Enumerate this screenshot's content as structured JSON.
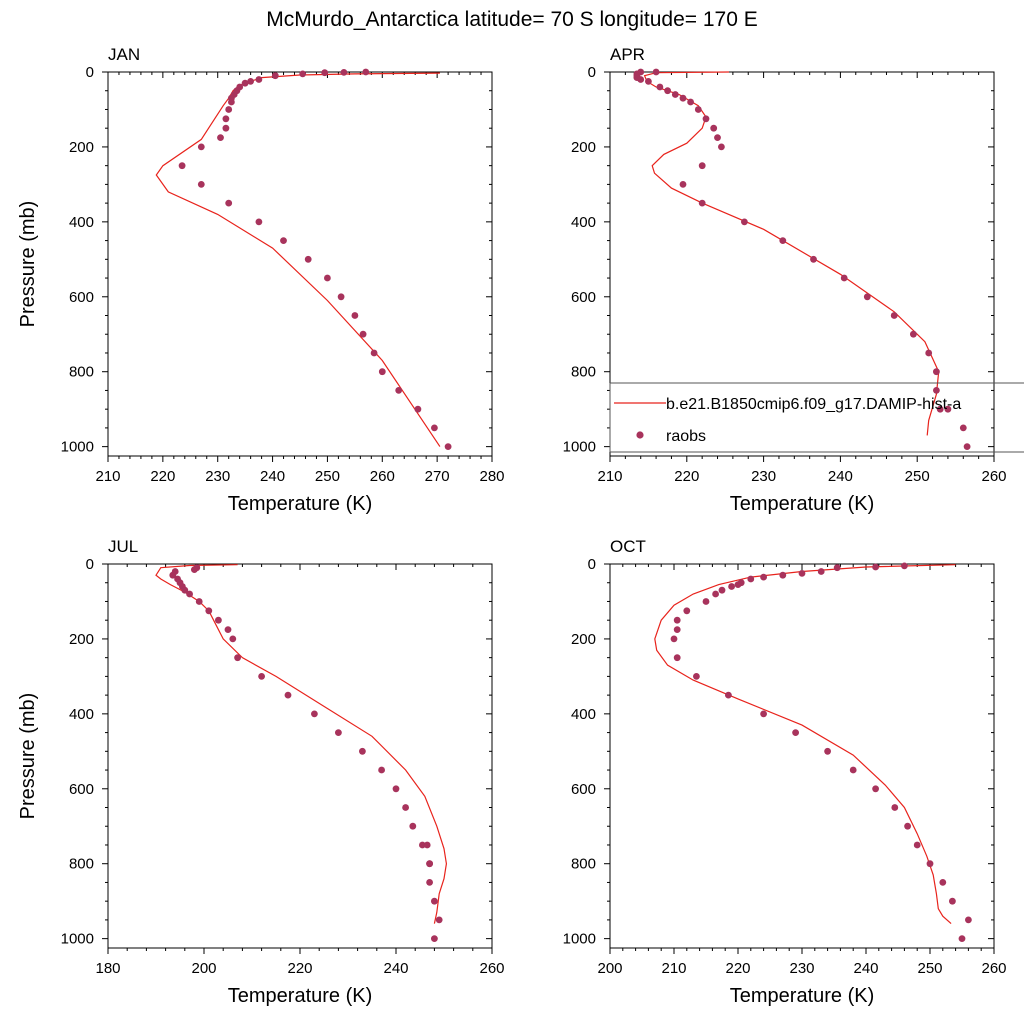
{
  "title": "McMurdo_Antarctica  latitude= 70 S longitude= 170 E",
  "colors": {
    "model": "#e8231c",
    "obs": "#a8335c"
  },
  "legend": {
    "panel": 1,
    "entries": [
      {
        "label": "b.e21.B1850cmip6.f09_g17.DAMIP-hist-a",
        "style": "line"
      },
      {
        "label": "raobs",
        "style": "marker"
      }
    ]
  },
  "chart_data": [
    {
      "type": "line",
      "title": "JAN",
      "xlabel": "Temperature (K)",
      "ylabel": "Pressure (mb)",
      "xlim": [
        210,
        280
      ],
      "ylim": [
        1025,
        0
      ],
      "xticks": [
        210,
        220,
        230,
        240,
        250,
        260,
        270,
        280
      ],
      "yticks": [
        0,
        200,
        400,
        600,
        800,
        1000
      ],
      "series": [
        {
          "name": "b.e21.B1850cmip6.f09_g17.DAMIP-hist-a",
          "style": "line",
          "x": [
            270.5,
            255,
            245,
            238,
            234,
            232.8,
            232,
            231,
            227,
            220,
            218.8,
            221,
            230,
            240,
            250,
            260,
            270.5
          ],
          "y": [
            3,
            5,
            8,
            15,
            35,
            50,
            70,
            90,
            180,
            250,
            275,
            320,
            380,
            470,
            610,
            770,
            1000
          ]
        },
        {
          "name": "raobs",
          "style": "marker",
          "x": [
            257,
            253,
            249.5,
            245.5,
            240.5,
            237.5,
            236,
            235,
            234,
            233.5,
            233,
            232.5,
            232.5,
            232,
            231.5,
            231.5,
            230.5,
            227,
            223.5,
            227,
            232,
            237.5,
            242,
            246.5,
            250,
            252.5,
            255,
            256.5,
            258.5,
            260,
            263,
            266.5,
            269.5,
            272
          ],
          "y": [
            0,
            1,
            2,
            5,
            10,
            20,
            25,
            30,
            40,
            50,
            60,
            70,
            80,
            100,
            125,
            150,
            175,
            200,
            250,
            300,
            350,
            400,
            450,
            500,
            550,
            600,
            650,
            700,
            750,
            800,
            850,
            900,
            950,
            1000
          ]
        }
      ]
    },
    {
      "type": "line",
      "title": "APR",
      "xlabel": "Temperature (K)",
      "ylabel": "",
      "xlim": [
        210,
        260
      ],
      "ylim": [
        1025,
        0
      ],
      "xticks": [
        210,
        220,
        230,
        240,
        250,
        260
      ],
      "yticks": [
        0,
        200,
        400,
        600,
        800,
        1000
      ],
      "series": [
        {
          "name": "b.e21.B1850cmip6.f09_g17.DAMIP-hist-a",
          "style": "line",
          "x": [
            225.5,
            216,
            214.5,
            214.8,
            216,
            219,
            221.5,
            222.5,
            222,
            221,
            220,
            217,
            215.5,
            215.8,
            218,
            222,
            230,
            240,
            247,
            251,
            252.8,
            252.5,
            251.5,
            251.3
          ],
          "y": [
            0,
            2,
            10,
            25,
            40,
            60,
            90,
            120,
            150,
            170,
            190,
            220,
            250,
            270,
            310,
            350,
            420,
            540,
            640,
            720,
            800,
            860,
            930,
            970
          ]
        },
        {
          "name": "raobs",
          "style": "marker",
          "x": [
            216,
            214,
            213.5,
            213.5,
            213.5,
            214,
            215,
            216.5,
            217.5,
            218.5,
            219.5,
            220.5,
            221.5,
            222.5,
            223.5,
            224,
            224.5,
            222,
            219.5,
            222,
            227.5,
            232.5,
            236.5,
            240.5,
            243.5,
            247,
            249.5,
            251.5,
            252.5,
            252.5,
            253,
            254,
            256,
            256.5
          ],
          "y": [
            0,
            0,
            5,
            10,
            15,
            20,
            25,
            40,
            50,
            60,
            70,
            80,
            100,
            125,
            150,
            175,
            200,
            250,
            300,
            350,
            400,
            450,
            500,
            550,
            600,
            650,
            700,
            750,
            800,
            850,
            900,
            900,
            950,
            1000
          ]
        }
      ]
    },
    {
      "type": "line",
      "title": "JUL",
      "xlabel": "Temperature (K)",
      "ylabel": "Pressure (mb)",
      "xlim": [
        180,
        260
      ],
      "ylim": [
        1025,
        0
      ],
      "xticks": [
        180,
        200,
        220,
        240,
        260
      ],
      "yticks": [
        0,
        200,
        400,
        600,
        800,
        1000
      ],
      "series": [
        {
          "name": "b.e21.B1850cmip6.f09_g17.DAMIP-hist-a",
          "style": "line",
          "x": [
            207,
            197,
            191,
            190,
            191,
            193,
            196,
            199,
            201,
            202,
            204,
            208,
            215,
            225,
            235,
            242,
            246,
            248.5,
            250,
            250.5,
            250,
            249,
            248.5,
            248
          ],
          "y": [
            2,
            4,
            10,
            30,
            40,
            55,
            75,
            100,
            125,
            150,
            200,
            250,
            300,
            380,
            460,
            550,
            620,
            700,
            760,
            800,
            840,
            880,
            930,
            960
          ]
        },
        {
          "name": "raobs",
          "style": "marker",
          "x": [
            198.5,
            198,
            194,
            193.5,
            194.5,
            195,
            195.5,
            196,
            197,
            199,
            201,
            203,
            205,
            206,
            207,
            212,
            217.5,
            223,
            228,
            233,
            237,
            240,
            242,
            243.5,
            245.5,
            246.5,
            247,
            247,
            247,
            248,
            249,
            248
          ],
          "y": [
            10,
            15,
            20,
            30,
            40,
            50,
            60,
            70,
            80,
            100,
            125,
            150,
            175,
            200,
            250,
            300,
            350,
            400,
            450,
            500,
            550,
            600,
            650,
            700,
            750,
            750,
            800,
            800,
            850,
            900,
            950,
            1000
          ]
        }
      ]
    },
    {
      "type": "line",
      "title": "OCT",
      "xlabel": "Temperature (K)",
      "ylabel": "",
      "xlim": [
        200,
        260
      ],
      "ylim": [
        1025,
        0
      ],
      "xticks": [
        200,
        210,
        220,
        230,
        240,
        250,
        260
      ],
      "yticks": [
        0,
        200,
        400,
        600,
        800,
        1000
      ],
      "series": [
        {
          "name": "b.e21.B1850cmip6.f09_g17.DAMIP-hist-a",
          "style": "line",
          "x": [
            254,
            240,
            230,
            222,
            217,
            213,
            210,
            208,
            207,
            207.3,
            209,
            213,
            220,
            230,
            238,
            243,
            246,
            248,
            249.5,
            250.5,
            251,
            251.3,
            252,
            253.3
          ],
          "y": [
            2,
            8,
            20,
            35,
            55,
            80,
            110,
            150,
            200,
            230,
            270,
            310,
            360,
            430,
            510,
            590,
            650,
            720,
            780,
            830,
            880,
            920,
            940,
            960
          ]
        },
        {
          "name": "raobs",
          "style": "marker",
          "x": [
            246,
            241.5,
            235.5,
            233,
            230,
            227,
            224,
            222,
            220.5,
            220,
            219,
            217.5,
            216.5,
            215,
            212,
            210.5,
            210.5,
            210,
            210.5,
            213.5,
            218.5,
            224,
            229,
            234,
            238,
            241.5,
            244.5,
            246.5,
            248,
            250,
            252,
            253.5,
            256,
            255
          ],
          "y": [
            5,
            8,
            10,
            20,
            25,
            30,
            35,
            40,
            50,
            55,
            60,
            70,
            80,
            100,
            125,
            150,
            175,
            200,
            250,
            300,
            350,
            400,
            450,
            500,
            550,
            600,
            650,
            700,
            750,
            800,
            850,
            900,
            950,
            1000
          ]
        }
      ]
    }
  ]
}
